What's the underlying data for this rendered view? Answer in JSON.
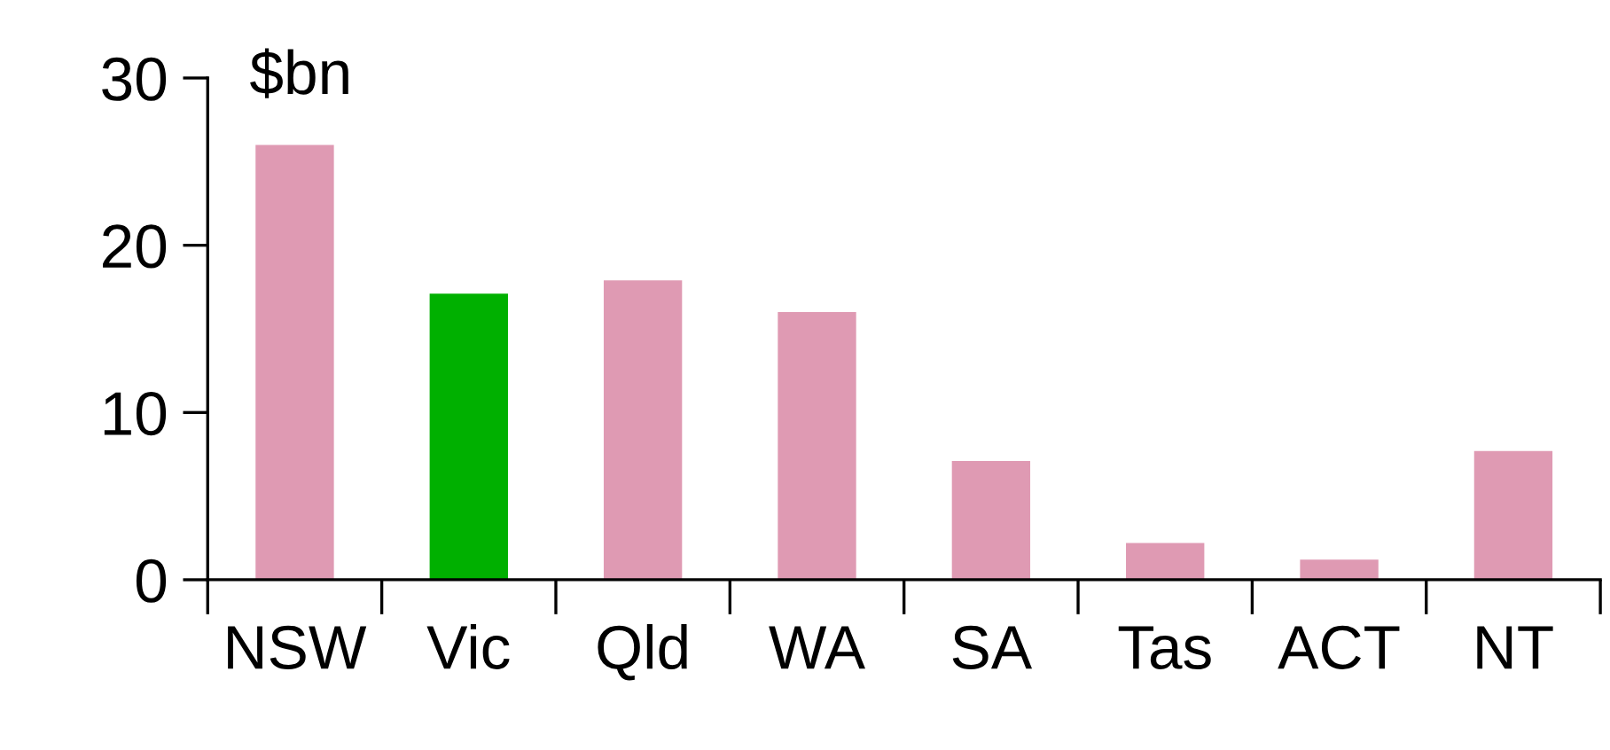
{
  "chart_data": {
    "type": "bar",
    "ylabel": "$bn",
    "categories": [
      "NSW",
      "Vic",
      "Qld",
      "WA",
      "SA",
      "Tas",
      "ACT",
      "NT"
    ],
    "values": [
      26.0,
      17.1,
      17.9,
      16.0,
      7.1,
      2.2,
      1.2,
      7.7
    ],
    "colors": [
      "#df9ab3",
      "#00b000",
      "#df9ab3",
      "#df9ab3",
      "#df9ab3",
      "#df9ab3",
      "#df9ab3",
      "#df9ab3"
    ],
    "ylim": [
      0,
      30
    ],
    "yticks": [
      0,
      10,
      20,
      30
    ],
    "grid": false,
    "legend": false
  }
}
